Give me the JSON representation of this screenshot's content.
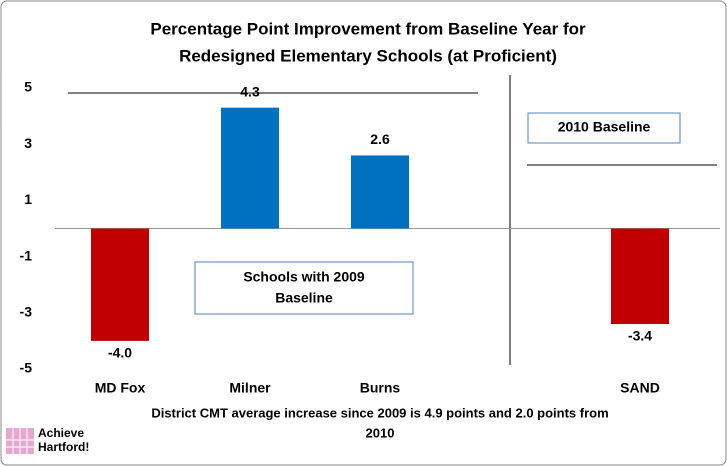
{
  "chart_data": {
    "type": "bar",
    "title": [
      "Percentage Point Improvement from Baseline Year for",
      "Redesigned Elementary Schools (at Proficient)"
    ],
    "categories": [
      "MD Fox",
      "Milner",
      "Burns",
      null,
      "SAND"
    ],
    "values": [
      -4.0,
      4.3,
      2.6,
      null,
      -3.4
    ],
    "value_labels": [
      "-4.0",
      "4.3",
      "2.6",
      null,
      "-3.4"
    ],
    "colors": [
      "#c00000",
      "#0070c0",
      "#0070c0",
      null,
      "#c00000"
    ],
    "ylim": [
      -5,
      5
    ],
    "yticks": [
      -5,
      -3,
      -1,
      1,
      3,
      5
    ],
    "grid": false,
    "annotations": [
      [
        "Schools with 2009",
        "Baseline"
      ],
      [
        "2010 Baseline"
      ]
    ],
    "footnote": [
      "District CMT average increase since 2009 is 4.9 points and 2.0 points from",
      "2010"
    ],
    "logo": [
      "Achieve",
      "Hartford!"
    ]
  }
}
